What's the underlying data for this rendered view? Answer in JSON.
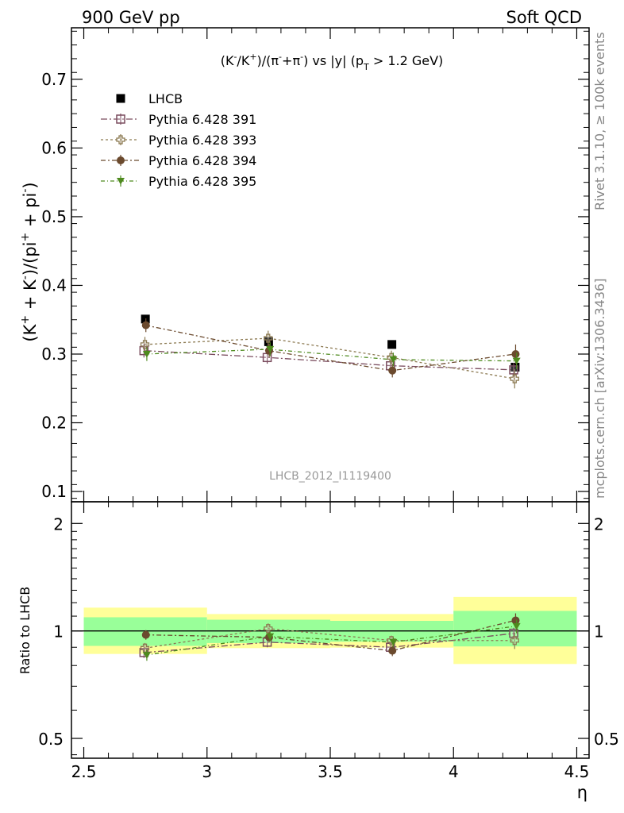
{
  "header": {
    "left": "900 GeV pp",
    "right": "Soft QCD"
  },
  "side_text": {
    "rivet": "Rivet 3.1.10, ≥ 100k events",
    "mcplots": "mcplots.cern.ch [arXiv:1306.3436]"
  },
  "chart_data": [
    {
      "type": "scatter",
      "panel": "main",
      "title_parts": {
        "a": "(K",
        "a_sup": "-",
        "b": "/K",
        "b_sup": "+",
        "c": ")/(π",
        "c_sup": "-",
        "d": "+π",
        "d_sup": "-",
        "e": ") vs |y| (p",
        "e_sub": "T",
        "f": " > 1.2 GeV)"
      },
      "ylabel_parts": {
        "a": "(K",
        "a_sup": "+",
        "b": " + K",
        "b_sup": "-",
        "c": ")/(pi",
        "c_sup": "+",
        "d": " + pi",
        "d_sup": "-",
        "e": ")"
      },
      "analysis_label": "LHCB_2012_I1119400",
      "xlim": [
        2.45,
        4.55
      ],
      "ylim": [
        0.085,
        0.775
      ],
      "yticks": [
        "0.1",
        "0.2",
        "0.3",
        "0.4",
        "0.5",
        "0.6",
        "0.7"
      ],
      "legend_position": "top-left",
      "x": [
        2.75,
        3.25,
        3.75,
        4.25
      ],
      "bins": [
        [
          2.5,
          3.0
        ],
        [
          3.0,
          3.5
        ],
        [
          3.5,
          4.0
        ],
        [
          4.0,
          4.5
        ]
      ],
      "series": [
        {
          "name": "LHCB",
          "marker": "square-filled",
          "color": "#000000",
          "values": [
            0.351,
            0.318,
            0.314,
            0.281
          ],
          "errors": [
            0.005,
            0.005,
            0.005,
            0.005
          ]
        },
        {
          "name": "Pythia 6.428 391",
          "marker": "square-open",
          "color": "#7a4c5e",
          "values": [
            0.305,
            0.295,
            0.283,
            0.277
          ],
          "errors": [
            0.01,
            0.009,
            0.009,
            0.01
          ]
        },
        {
          "name": "Pythia 6.428 393",
          "marker": "cross-open",
          "color": "#8c7a52",
          "values": [
            0.314,
            0.323,
            0.295,
            0.264
          ],
          "errors": [
            0.011,
            0.011,
            0.01,
            0.014
          ]
        },
        {
          "name": "Pythia 6.428 394",
          "marker": "circle-filled",
          "color": "#6b4a2e",
          "values": [
            0.342,
            0.305,
            0.276,
            0.3
          ],
          "errors": [
            0.01,
            0.01,
            0.01,
            0.014
          ]
        },
        {
          "name": "Pythia 6.428 395",
          "marker": "triangle-down-filled",
          "color": "#4e8a1e",
          "values": [
            0.3,
            0.307,
            0.292,
            0.29
          ],
          "errors": [
            0.01,
            0.01,
            0.01,
            0.012
          ]
        }
      ]
    },
    {
      "type": "scatter",
      "panel": "ratio",
      "ylabel": "Ratio to LHCB",
      "xlabel": "η",
      "xlim": [
        2.45,
        4.55
      ],
      "xticks": [
        "2.5",
        "3",
        "3.5",
        "4",
        "4.5"
      ],
      "yticks": [
        "0.5",
        "1",
        "2"
      ],
      "ylim": [
        0.44,
        2.3
      ],
      "log_y": true,
      "bands": [
        {
          "x": [
            2.5,
            3.0
          ],
          "inner": [
            0.908,
            1.092
          ],
          "outer": [
            0.862,
            1.162
          ]
        },
        {
          "x": [
            3.0,
            3.5
          ],
          "inner": [
            0.925,
            1.075
          ],
          "outer": [
            0.895,
            1.115
          ]
        },
        {
          "x": [
            3.5,
            4.0
          ],
          "inner": [
            0.933,
            1.067
          ],
          "outer": [
            0.898,
            1.115
          ]
        },
        {
          "x": [
            4.0,
            4.5
          ],
          "inner": [
            0.905,
            1.138
          ],
          "outer": [
            0.808,
            1.245
          ]
        }
      ],
      "series": [
        {
          "name": "Pythia 6.428 391",
          "values": [
            0.87,
            0.93,
            0.9,
            0.985
          ],
          "errors": [
            0.03,
            0.03,
            0.03,
            0.035
          ]
        },
        {
          "name": "Pythia 6.428 393",
          "values": [
            0.895,
            1.015,
            0.94,
            0.94
          ],
          "errors": [
            0.03,
            0.035,
            0.03,
            0.05
          ]
        },
        {
          "name": "Pythia 6.428 394",
          "values": [
            0.975,
            0.96,
            0.88,
            1.07
          ],
          "errors": [
            0.03,
            0.03,
            0.03,
            0.05
          ]
        },
        {
          "name": "Pythia 6.428 395",
          "values": [
            0.855,
            0.965,
            0.93,
            1.03
          ],
          "errors": [
            0.03,
            0.03,
            0.03,
            0.045
          ]
        }
      ]
    }
  ]
}
